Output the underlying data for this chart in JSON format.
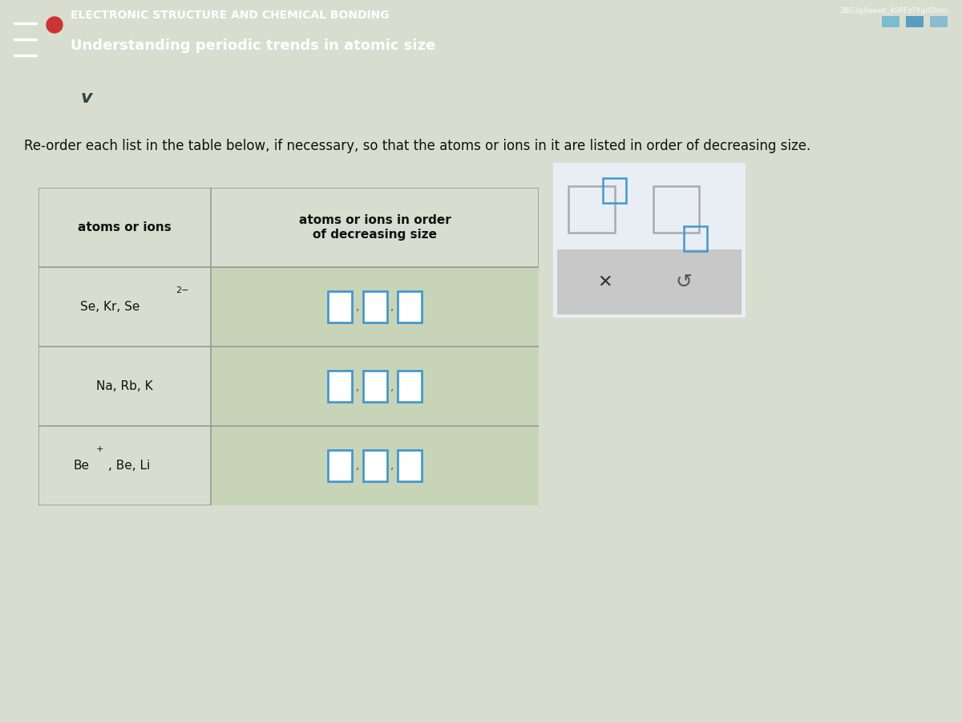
{
  "title_line1": "ELECTRONIC STRUCTURE AND CHEMICAL BONDING",
  "title_line2": "Understanding periodic trends in atomic size",
  "instruction": "Re-order each list in the table below, if necessary, so that the atoms or ions in it are listed in order of decreasing size.",
  "col1_header": "atoms or ions",
  "col2_header": "atoms or ions in order\nof decreasing size",
  "header_bg": "#5bbfd4",
  "top_bar_color": "#3ab5cc",
  "body_bg_color": "#d8ddd0",
  "table_border_color": "#999999",
  "right_cell_bg": "#c8d4b8",
  "box_color": "#4499cc",
  "side_panel_bg": "#e8eef4",
  "side_panel_border": "#bbbbbb",
  "bottom_gray": "#c8c8c8",
  "hamburger_color": "#ffffff",
  "circle_color": "#cc3333",
  "chevron_bg": "#b8d4e0",
  "row1_left": "Se, Kr, Se",
  "row1_sup": "2−",
  "row2_left": "Na, Rb, K",
  "row3_left_a": "Be",
  "row3_left_sup": "+",
  "row3_left_b": ", Be, Li"
}
